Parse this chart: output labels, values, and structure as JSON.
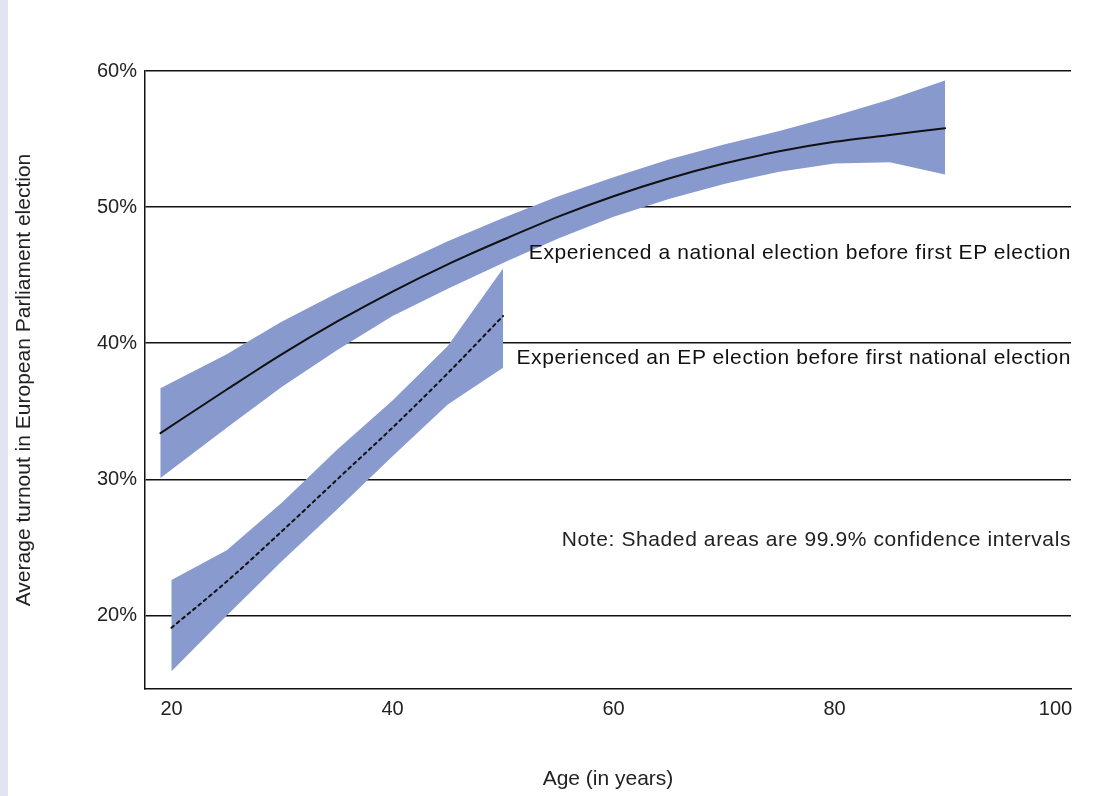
{
  "chart_data": {
    "type": "line",
    "xlabel": "Age (in years)",
    "ylabel": "Average turnout in European Parliament election",
    "xlim": [
      17.6,
      101.4
    ],
    "xticks": [
      20,
      40,
      60,
      80,
      100
    ],
    "ylim": [
      14.6,
      60
    ],
    "yticks": [
      {
        "value": 20,
        "label": "20%"
      },
      {
        "value": 30,
        "label": "30%"
      },
      {
        "value": 40,
        "label": "40%"
      },
      {
        "value": 50,
        "label": "50%"
      },
      {
        "value": 60,
        "label": "60%"
      }
    ],
    "grid": "y",
    "legend": false,
    "marker": "none",
    "series": [
      {
        "name": "Experienced a national election before first EP election",
        "color": "#111111",
        "line_style": "solid",
        "x": [
          19,
          25,
          30,
          35,
          40,
          45,
          50,
          55,
          60,
          65,
          70,
          75,
          80,
          85,
          90
        ],
        "values": [
          33.4,
          36.6,
          39.2,
          41.6,
          43.8,
          45.8,
          47.6,
          49.3,
          50.8,
          52.1,
          53.2,
          54.1,
          54.8,
          55.3,
          55.8
        ],
        "upper": [
          36.7,
          39.2,
          41.6,
          43.7,
          45.6,
          47.5,
          49.2,
          50.8,
          52.2,
          53.5,
          54.6,
          55.6,
          56.7,
          57.9,
          59.3
        ],
        "lower": [
          30.1,
          33.8,
          36.8,
          39.5,
          42.0,
          44.0,
          45.9,
          47.7,
          49.3,
          50.6,
          51.7,
          52.6,
          53.2,
          53.3,
          52.4
        ]
      },
      {
        "name": "Experienced an EP election before first national election",
        "color": "#111111",
        "line_style": "dotted",
        "x": [
          20,
          25,
          30,
          35,
          40,
          45,
          50
        ],
        "values": [
          19.1,
          22.5,
          26.2,
          30.0,
          33.8,
          37.8,
          42.0
        ],
        "upper": [
          22.6,
          24.8,
          28.3,
          32.2,
          35.8,
          39.8,
          45.5
        ],
        "lower": [
          15.9,
          20.0,
          24.0,
          27.8,
          31.7,
          35.5,
          38.2
        ]
      }
    ],
    "annotations": [
      "Note: Shaded areas are 99.9% confidence intervals"
    ]
  }
}
